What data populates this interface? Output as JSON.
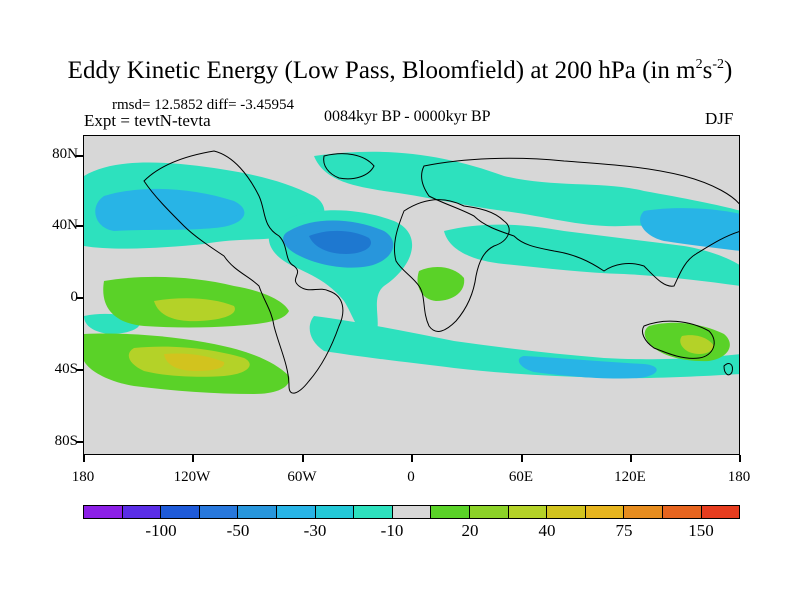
{
  "title": {
    "main": "Eddy Kinetic Energy (Low Pass, Bloomfield) at 200 hPa (in m",
    "sup1": "2",
    "mid": "s",
    "sup2": "-2",
    "close": ")"
  },
  "stats": "rmsd= 12.5852 diff= -3.45954",
  "expt": "Expt = tevtN-tevta",
  "period": "0084kyr BP - 0000kyr BP",
  "season": "DJF",
  "axes": {
    "lat_labels": [
      "80N",
      "40N",
      "0",
      "40S",
      "80S"
    ],
    "lon_labels": [
      "180",
      "120W",
      "60W",
      "0",
      "60E",
      "120E",
      "180"
    ]
  },
  "colorbar": {
    "colors": [
      "#8c1fe6",
      "#5a2de6",
      "#1e5ad8",
      "#2878dc",
      "#2896dc",
      "#28b4e6",
      "#23c8d7",
      "#2de1be",
      "#d7d7d7",
      "#5ad228",
      "#8cd228",
      "#b4d228",
      "#d2c31e",
      "#e6b41e",
      "#e68c1e",
      "#e6641e",
      "#e63c1e"
    ],
    "labels": [
      "-100",
      "-50",
      "-30",
      "-10",
      "20",
      "40",
      "75",
      "150"
    ]
  },
  "map_palette": {
    "background": "#d7d7d7",
    "neg_light": "#2de1be",
    "neg_mid": "#28b4e6",
    "neg_strong": "#2896dc",
    "neg_max": "#1e78d0",
    "pos_light": "#5ad228",
    "pos_mid": "#b4d228",
    "pos_strong": "#d2c31e"
  }
}
